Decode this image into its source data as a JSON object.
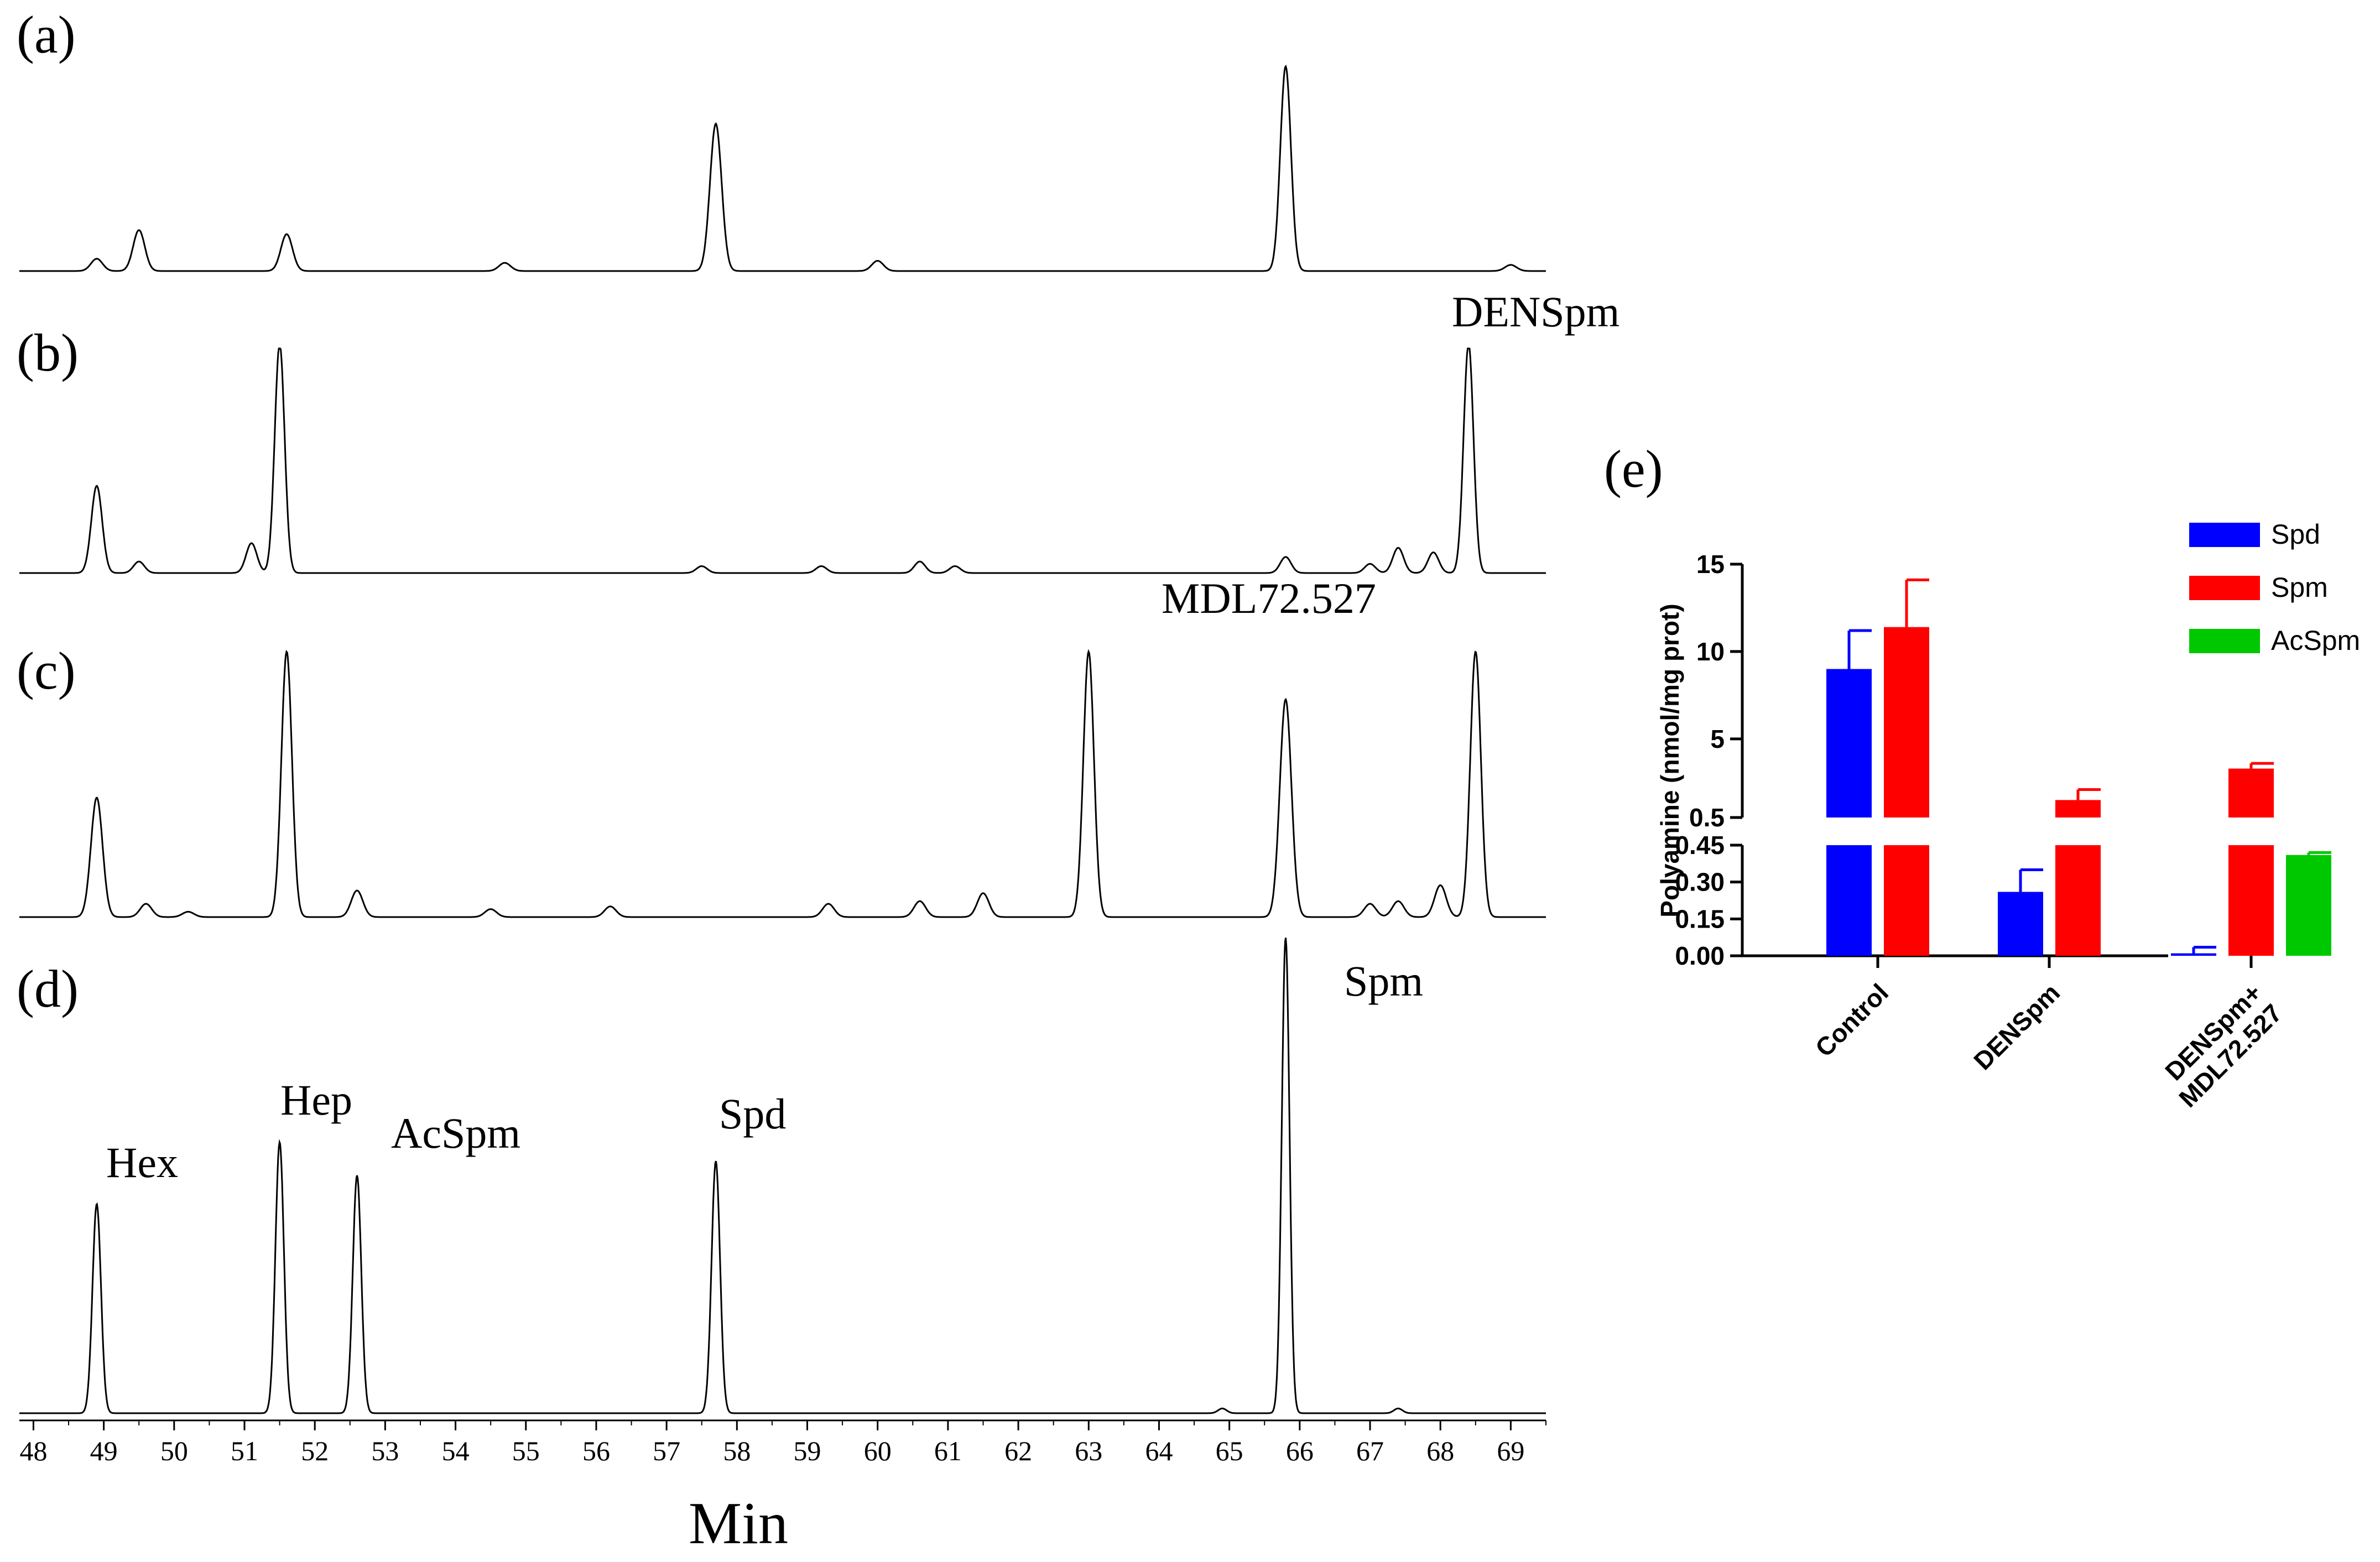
{
  "chromatograms": {
    "xlabel": "Min",
    "xlim": [
      47.8,
      69.5
    ],
    "ticks": [
      48,
      49,
      50,
      51,
      52,
      53,
      54,
      55,
      56,
      57,
      58,
      59,
      60,
      61,
      62,
      63,
      64,
      65,
      66,
      67,
      68,
      69
    ],
    "panels": [
      {
        "panel_label": "(a)",
        "annotations": [],
        "peaks": [
          {
            "t": 48.9,
            "h": 0.06
          },
          {
            "t": 49.5,
            "h": 0.2
          },
          {
            "t": 51.6,
            "h": 0.18
          },
          {
            "t": 54.7,
            "h": 0.04
          },
          {
            "t": 57.7,
            "h": 0.72
          },
          {
            "t": 60.0,
            "h": 0.05
          },
          {
            "t": 65.8,
            "h": 1.0
          },
          {
            "t": 69.0,
            "h": 0.03
          }
        ]
      },
      {
        "panel_label": "(b)",
        "annotations": [
          {
            "text": "DENSpm"
          }
        ],
        "peaks": [
          {
            "t": 48.9,
            "h": 0.38
          },
          {
            "t": 49.5,
            "h": 0.05
          },
          {
            "t": 51.1,
            "h": 0.13
          },
          {
            "t": 51.5,
            "h": 1.0
          },
          {
            "t": 57.5,
            "h": 0.03
          },
          {
            "t": 59.2,
            "h": 0.03
          },
          {
            "t": 60.6,
            "h": 0.05
          },
          {
            "t": 61.1,
            "h": 0.03
          },
          {
            "t": 65.8,
            "h": 0.07
          },
          {
            "t": 67.0,
            "h": 0.04
          },
          {
            "t": 67.4,
            "h": 0.11
          },
          {
            "t": 67.9,
            "h": 0.09
          },
          {
            "t": 68.4,
            "h": 1.0
          }
        ]
      },
      {
        "panel_label": "(c)",
        "annotations": [
          {
            "text": "MDL72.527"
          }
        ],
        "peaks": [
          {
            "t": 48.9,
            "h": 0.45
          },
          {
            "t": 49.6,
            "h": 0.05
          },
          {
            "t": 50.2,
            "h": 0.02
          },
          {
            "t": 51.6,
            "h": 1.0
          },
          {
            "t": 52.6,
            "h": 0.1
          },
          {
            "t": 54.5,
            "h": 0.03
          },
          {
            "t": 56.2,
            "h": 0.04
          },
          {
            "t": 59.3,
            "h": 0.05
          },
          {
            "t": 60.6,
            "h": 0.06
          },
          {
            "t": 61.5,
            "h": 0.09
          },
          {
            "t": 63.0,
            "h": 1.0
          },
          {
            "t": 65.8,
            "h": 0.82
          },
          {
            "t": 67.0,
            "h": 0.05
          },
          {
            "t": 67.4,
            "h": 0.06
          },
          {
            "t": 68.0,
            "h": 0.12
          },
          {
            "t": 68.5,
            "h": 1.0
          }
        ]
      },
      {
        "panel_label": "(d)",
        "annotations": [
          {
            "text": "Hex"
          },
          {
            "text": "Hep"
          },
          {
            "text": "AcSpm"
          },
          {
            "text": "Spd"
          },
          {
            "text": "Spm"
          }
        ],
        "peaks": [
          {
            "t": 48.9,
            "h": 0.44
          },
          {
            "t": 51.5,
            "h": 0.57
          },
          {
            "t": 52.6,
            "h": 0.5
          },
          {
            "t": 57.7,
            "h": 0.53
          },
          {
            "t": 65.8,
            "h": 1.0
          },
          {
            "t": 64.9,
            "h": 0.01
          },
          {
            "t": 67.4,
            "h": 0.01
          }
        ]
      }
    ]
  },
  "chart_data": {
    "type": "bar",
    "panel_label": "(e)",
    "title": "",
    "xlabel": "",
    "ylabel": "Polyamine (nmol/mg prot)",
    "categories": [
      "Control",
      "DENSpm",
      "DENSpm+\nMDL72.527"
    ],
    "series": [
      {
        "name": "Spd",
        "color": "#0000ff",
        "values": [
          9.0,
          0.26,
          0.01
        ],
        "errors": [
          2.2,
          0.09,
          0.025
        ]
      },
      {
        "name": "Spm",
        "color": "#ff0000",
        "values": [
          11.4,
          1.5,
          3.3
        ],
        "errors": [
          2.7,
          0.6,
          0.3
        ]
      },
      {
        "name": "AcSpm",
        "color": "#00c800",
        "values": [
          0.0,
          0.0,
          0.41
        ],
        "errors": [
          0.0,
          0.0,
          0.01
        ]
      }
    ],
    "axis_break": {
      "lower_range": [
        0,
        0.45
      ],
      "upper_range": [
        0.5,
        15
      ]
    },
    "lower_ticks": [
      "0.00",
      "0.15",
      "0.30",
      "0.45"
    ],
    "upper_ticks": [
      "0.5",
      "5",
      "10",
      "15"
    ],
    "legend": "top-right",
    "grid": false
  }
}
